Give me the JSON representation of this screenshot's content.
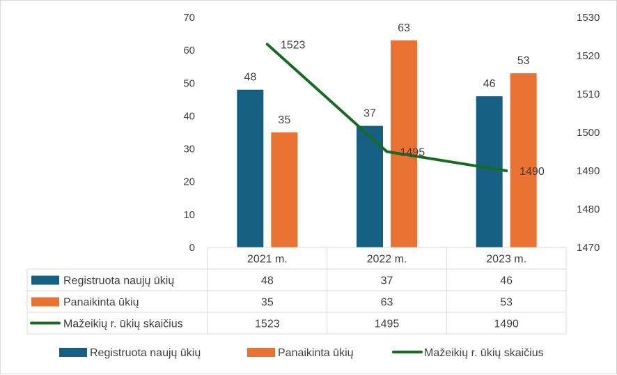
{
  "chart_data": {
    "type": "bar",
    "categories": [
      "2021 m.",
      "2022 m.",
      "2023 m."
    ],
    "series": [
      {
        "name": "Registruota naujų ūkių",
        "type": "bar",
        "axis": "left",
        "color": "#156082",
        "values": [
          48,
          37,
          46
        ]
      },
      {
        "name": "Panaikinta ūkių",
        "type": "bar",
        "axis": "left",
        "color": "#E97132",
        "values": [
          35,
          63,
          53
        ]
      },
      {
        "name": "Mažeikių r. ūkių skaičius",
        "type": "line",
        "axis": "right",
        "color": "#196B24",
        "values": [
          1523,
          1495,
          1490
        ]
      }
    ],
    "y_left": {
      "min": 0,
      "max": 70,
      "step": 10
    },
    "y_right": {
      "min": 1470,
      "max": 1530,
      "step": 10
    },
    "data_table": true,
    "legend": "bottom",
    "grid": false
  }
}
